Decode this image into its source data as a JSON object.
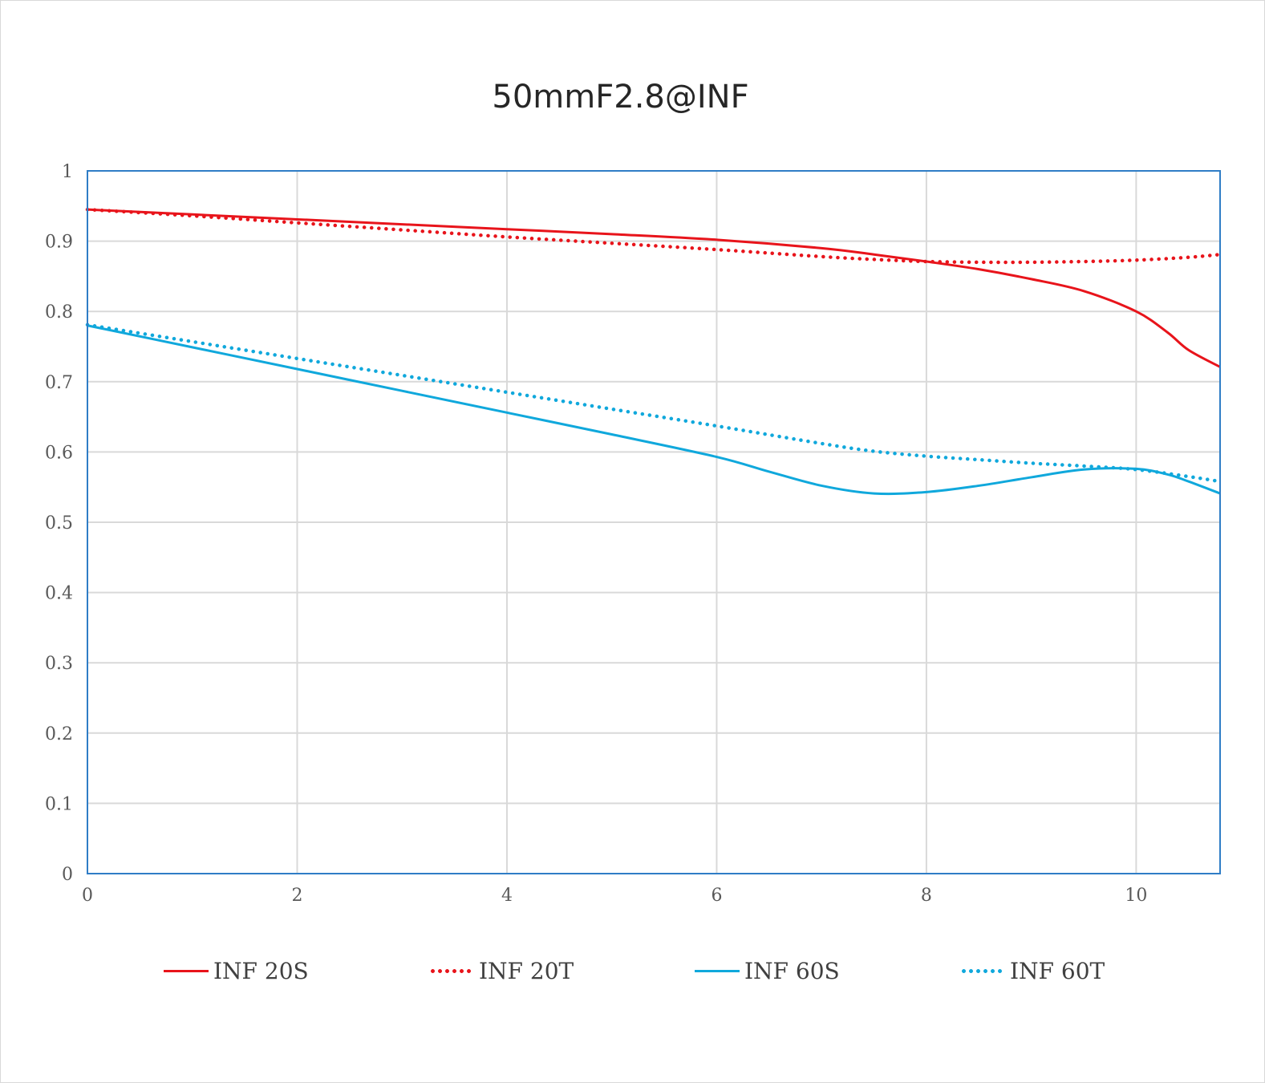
{
  "chart_data": {
    "type": "line",
    "title": "50mmF2.8@INF",
    "xlabel": "",
    "ylabel": "",
    "xlim": [
      0,
      10.8
    ],
    "ylim": [
      0,
      1
    ],
    "x_ticks": [
      "0",
      "2",
      "4",
      "6",
      "8",
      "10"
    ],
    "y_ticks": [
      "0",
      "0.1",
      "0.2",
      "0.3",
      "0.4",
      "0.5",
      "0.6",
      "0.7",
      "0.8",
      "0.9",
      "1"
    ],
    "grid": true,
    "legend_position": "bottom",
    "series": [
      {
        "name": "INF 20S",
        "color": "#e8141b",
        "style": "solid",
        "x": [
          0,
          1,
          2,
          3,
          4,
          5,
          6,
          7,
          7.5,
          8,
          8.5,
          9,
          9.5,
          10,
          10.3,
          10.5,
          10.8
        ],
        "y": [
          0.945,
          0.938,
          0.931,
          0.924,
          0.917,
          0.91,
          0.902,
          0.89,
          0.881,
          0.871,
          0.86,
          0.846,
          0.829,
          0.8,
          0.77,
          0.745,
          0.721
        ]
      },
      {
        "name": "INF 20T",
        "color": "#e8141b",
        "style": "dotted",
        "x": [
          0,
          1,
          2,
          3,
          4,
          5,
          6,
          7,
          7.5,
          8,
          8.5,
          9,
          9.5,
          10,
          10.5,
          10.8
        ],
        "y": [
          0.945,
          0.936,
          0.926,
          0.916,
          0.906,
          0.897,
          0.888,
          0.878,
          0.874,
          0.871,
          0.87,
          0.87,
          0.871,
          0.873,
          0.877,
          0.881
        ]
      },
      {
        "name": "INF 60S",
        "color": "#10a8dc",
        "style": "solid",
        "x": [
          0,
          1,
          2,
          3,
          4,
          5,
          6,
          6.5,
          7,
          7.5,
          8,
          8.5,
          9,
          9.5,
          10,
          10.3,
          10.5,
          10.8
        ],
        "y": [
          0.78,
          0.749,
          0.718,
          0.687,
          0.656,
          0.625,
          0.593,
          0.572,
          0.552,
          0.541,
          0.543,
          0.552,
          0.564,
          0.575,
          0.576,
          0.568,
          0.558,
          0.541
        ]
      },
      {
        "name": "INF 60T",
        "color": "#10a8dc",
        "style": "dotted",
        "x": [
          0,
          1,
          2,
          3,
          4,
          5,
          6,
          7,
          7.5,
          8,
          8.5,
          9,
          9.5,
          10,
          10.5,
          10.8
        ],
        "y": [
          0.781,
          0.757,
          0.733,
          0.709,
          0.685,
          0.661,
          0.637,
          0.612,
          0.601,
          0.594,
          0.589,
          0.584,
          0.58,
          0.575,
          0.565,
          0.558
        ]
      }
    ]
  }
}
